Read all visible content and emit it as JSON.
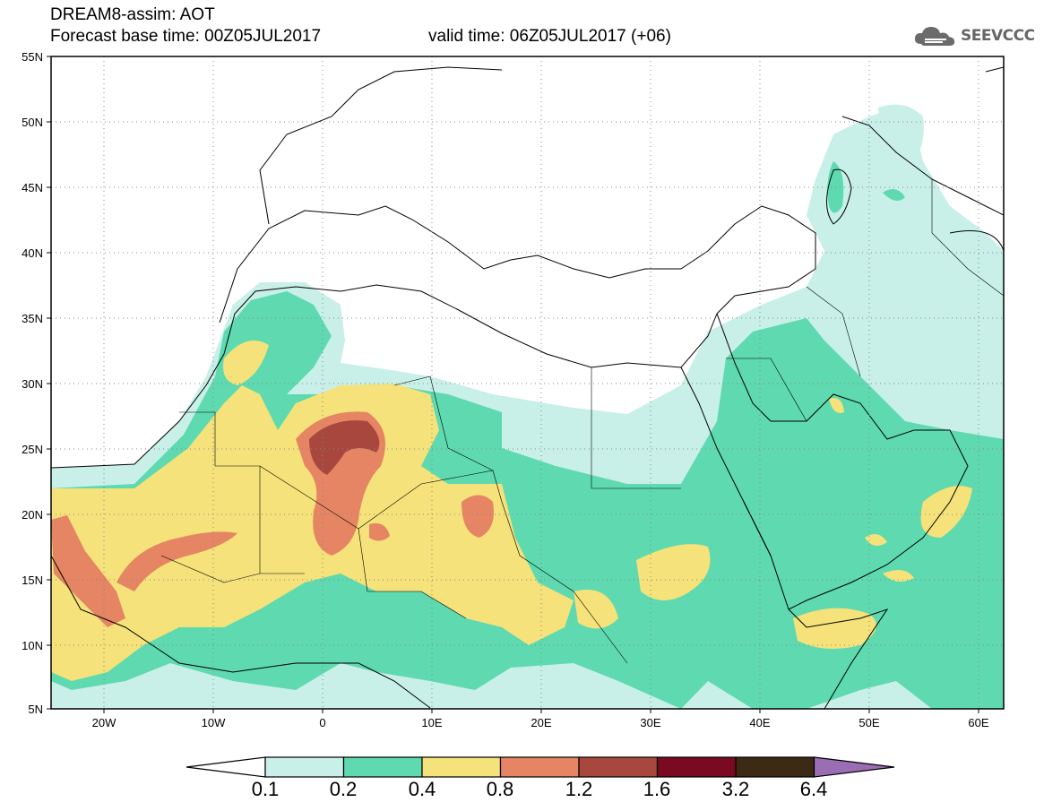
{
  "header": {
    "line1": "DREAM8-assim: AOT",
    "line2": "Forecast base time: 00Z05JUL2017",
    "valid": "valid time: 06Z05JUL2017 (+06)"
  },
  "logo": {
    "text": "SEEVCCC",
    "icon": "cloud-icon"
  },
  "map": {
    "lon_range": [
      -25,
      65
    ],
    "lat_range": [
      5,
      55
    ],
    "lat_ticks": [
      "55N",
      "50N",
      "45N",
      "40N",
      "35N",
      "30N",
      "25N",
      "20N",
      "15N",
      "10N",
      "5N"
    ],
    "lon_ticks": [
      "20W",
      "10W",
      "0",
      "10E",
      "20E",
      "30E",
      "40E",
      "50E",
      "60E"
    ],
    "grid": "dotted"
  },
  "colorbar": {
    "labels": [
      "0.1",
      "0.2",
      "0.4",
      "0.8",
      "1.2",
      "1.6",
      "3.2",
      "6.4"
    ],
    "colors": [
      "#ffffff",
      "#c8f0e8",
      "#5ed9b0",
      "#f5e27a",
      "#e58563",
      "#a8473e",
      "#7a0a22",
      "#3c2a14",
      "#9b6db4"
    ]
  }
}
